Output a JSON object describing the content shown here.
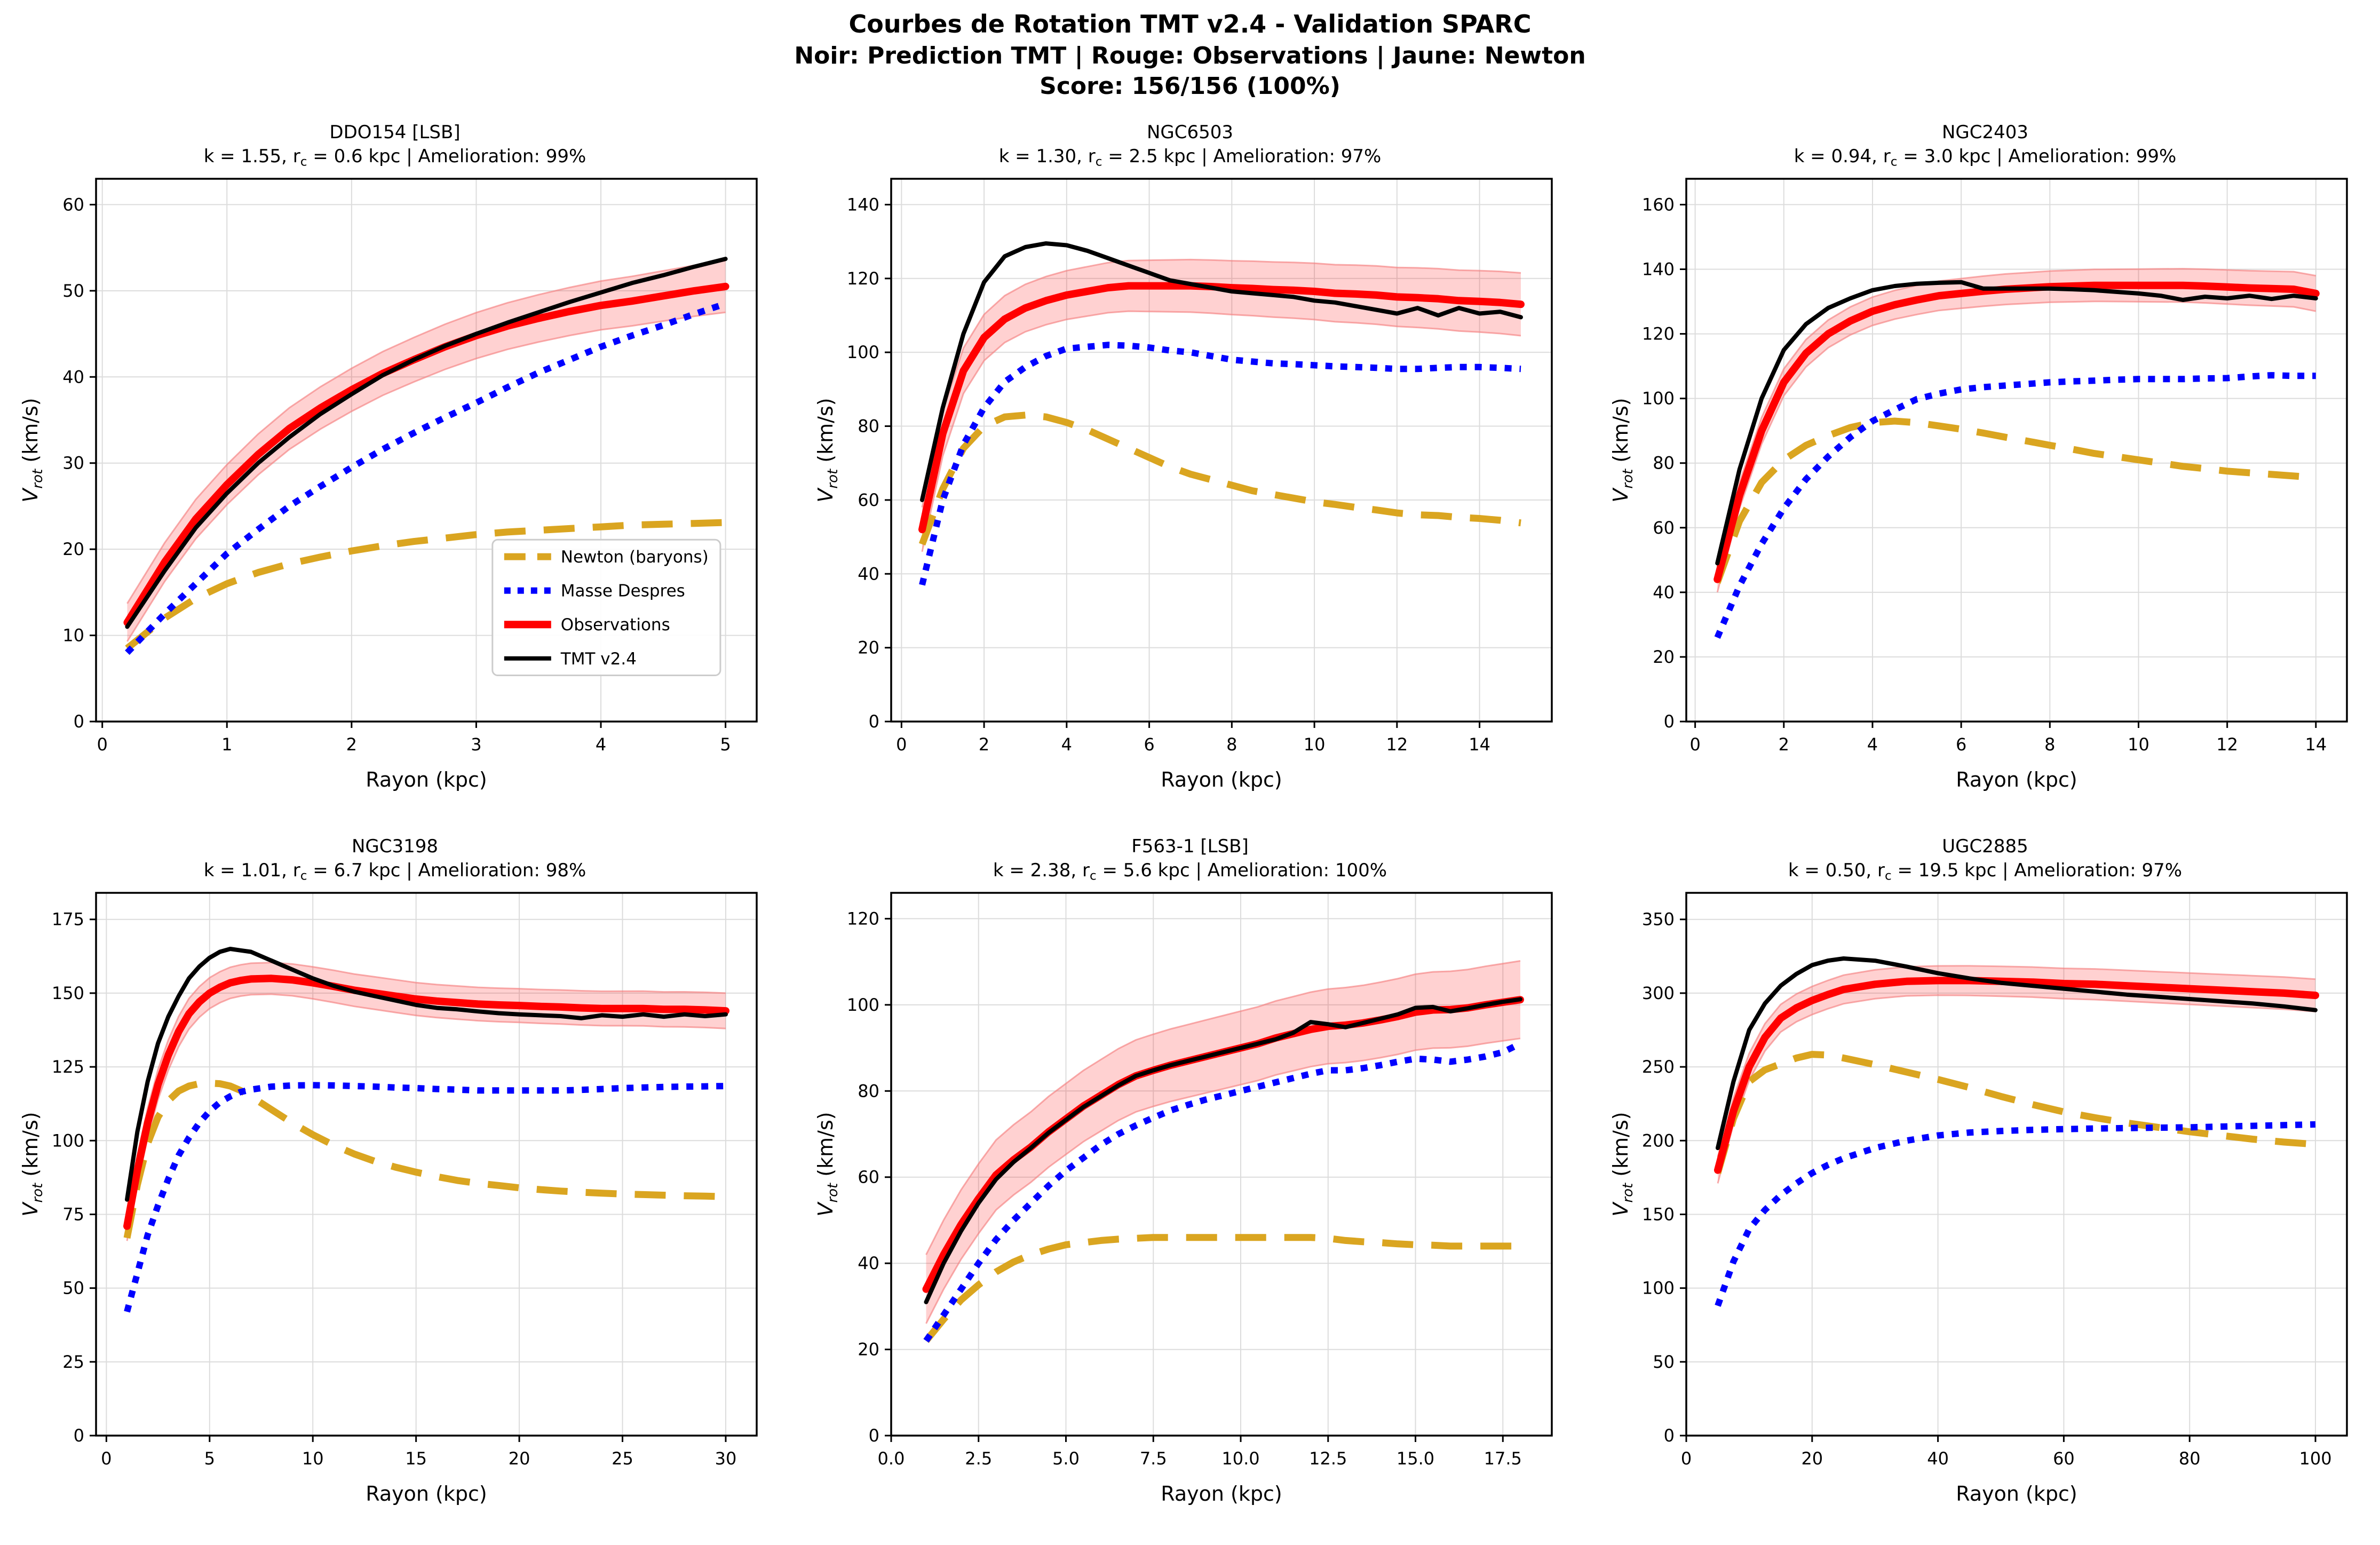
{
  "header": {
    "line1": "Courbes de Rotation TMT v2.4 - Validation SPARC",
    "line2": "Noir: Prediction TMT | Rouge: Observations | Jaune: Newton",
    "line3": "Score: 156/156 (100%)"
  },
  "axis": {
    "xlabel": "Rayon (kpc)",
    "ylabel_prefix": "V",
    "ylabel_sub": "rot",
    "ylabel_suffix": " (km/s)"
  },
  "colors": {
    "newton": "#DAA520",
    "despres": "#0000FF",
    "obs": "#FF0000",
    "tmt": "#000000",
    "band_fill": "#FF0000",
    "band_edge": "#F57F7F",
    "grid": "#DCDCDC",
    "spine": "#000000"
  },
  "legend": {
    "entries": [
      {
        "key": "newton",
        "label": "Newton (baryons)"
      },
      {
        "key": "despres",
        "label": "Masse Despres"
      },
      {
        "key": "obs",
        "label": "Observations"
      },
      {
        "key": "tmt",
        "label": "TMT v2.4"
      }
    ]
  },
  "chart_data": [
    {
      "type": "line",
      "name": "DDO154 [LSB]",
      "params_pre": "k = 1.55, r",
      "params_sub": "c",
      "params_post": " = 0.6 kpc | Amelioration: 99%",
      "xlabel": "Rayon (kpc)",
      "ylabel": "V_rot (km/s)",
      "legend": true,
      "xlim": [
        -0.05,
        5.25
      ],
      "ylim": [
        0,
        63
      ],
      "xticks": [
        0,
        1,
        2,
        3,
        4,
        5
      ],
      "xlabels": [
        "0",
        "1",
        "2",
        "3",
        "4",
        "5"
      ],
      "yticks": [
        0,
        10,
        20,
        30,
        40,
        50,
        60
      ],
      "ylabels": [
        "0",
        "10",
        "20",
        "30",
        "40",
        "50",
        "60"
      ],
      "x": [
        0.2,
        0.5,
        0.75,
        1,
        1.25,
        1.5,
        1.75,
        2,
        2.25,
        2.5,
        2.75,
        3,
        3.25,
        3.5,
        3.75,
        4,
        4.25,
        4.5,
        4.75,
        5
      ],
      "newton": [
        8.5,
        12,
        14.3,
        16,
        17.3,
        18.3,
        19.1,
        19.8,
        20.4,
        20.9,
        21.3,
        21.7,
        22,
        22.2,
        22.4,
        22.6,
        22.8,
        22.9,
        23,
        23.1
      ],
      "despres": [
        8,
        12.5,
        16,
        19.5,
        22.3,
        25,
        27.3,
        29.5,
        31.6,
        33.5,
        35.3,
        37,
        38.8,
        40.5,
        42,
        43.5,
        44.8,
        46,
        47.3,
        48.5
      ],
      "obs": [
        11.5,
        18.5,
        23.5,
        27.5,
        31,
        34,
        36.4,
        38.5,
        40.4,
        42,
        43.5,
        44.8,
        45.9,
        46.8,
        47.6,
        48.3,
        48.8,
        49.4,
        50,
        50.5
      ],
      "tmt": [
        11,
        17.5,
        22.5,
        26.5,
        30,
        33,
        35.7,
        38,
        40.2,
        42,
        43.6,
        45,
        46.3,
        47.5,
        48.7,
        49.8,
        50.9,
        51.8,
        52.8,
        53.7
      ],
      "band": [
        2.2,
        3.0
      ]
    },
    {
      "type": "line",
      "name": "NGC6503",
      "params_pre": "k = 1.30, r",
      "params_sub": "c",
      "params_post": " = 2.5 kpc | Amelioration: 97%",
      "xlabel": "Rayon (kpc)",
      "ylabel": "V_rot (km/s)",
      "legend": false,
      "xlim": [
        -0.25,
        15.75
      ],
      "ylim": [
        0,
        147
      ],
      "xticks": [
        0,
        2,
        4,
        6,
        8,
        10,
        12,
        14
      ],
      "xlabels": [
        "0",
        "2",
        "4",
        "6",
        "8",
        "10",
        "12",
        "14"
      ],
      "yticks": [
        0,
        20,
        40,
        60,
        80,
        100,
        120,
        140
      ],
      "ylabels": [
        "0",
        "20",
        "40",
        "60",
        "80",
        "100",
        "120",
        "140"
      ],
      "x": [
        0.5,
        1,
        1.5,
        2,
        2.5,
        3,
        3.5,
        4,
        4.5,
        5,
        5.5,
        6,
        6.5,
        7,
        7.5,
        8,
        8.5,
        9,
        9.5,
        10,
        10.5,
        11,
        11.5,
        12,
        12.5,
        13,
        13.5,
        14,
        14.5,
        15
      ],
      "newton": [
        48,
        63,
        74,
        80,
        82.5,
        83,
        82.5,
        81,
        79,
        76.5,
        74,
        71.5,
        69,
        67,
        65.5,
        64,
        62.5,
        61.5,
        60.5,
        59.5,
        58.8,
        58,
        57.3,
        56.5,
        56,
        55.8,
        55.3,
        55,
        54.5,
        53.8
      ],
      "despres": [
        37,
        60,
        75,
        85,
        92,
        96,
        99,
        101,
        101.5,
        102,
        101.8,
        101.3,
        100.5,
        100,
        99,
        98,
        97.5,
        97,
        96.8,
        96.5,
        96.2,
        96,
        95.8,
        95.5,
        95.5,
        95.8,
        96,
        96,
        95.8,
        95.5
      ],
      "obs": [
        52,
        78,
        95,
        104,
        109,
        112,
        114,
        115.5,
        116.5,
        117.5,
        118,
        118,
        118,
        118,
        117.8,
        117.5,
        117.3,
        117,
        116.8,
        116.5,
        116,
        115.8,
        115.5,
        115,
        114.8,
        114.5,
        114,
        113.8,
        113.5,
        113
      ],
      "tmt": [
        60,
        85,
        105,
        119,
        126,
        128.5,
        129.5,
        129,
        127.5,
        125.5,
        123.5,
        121.5,
        119.5,
        118.5,
        117.5,
        116.5,
        116,
        115.5,
        115,
        114,
        113.5,
        112.5,
        111.5,
        110.5,
        112,
        110,
        112,
        110.5,
        111,
        109.5
      ],
      "band": [
        6,
        8.5
      ]
    },
    {
      "type": "line",
      "name": "NGC2403",
      "params_pre": "k = 0.94, r",
      "params_sub": "c",
      "params_post": " = 3.0 kpc | Amelioration: 99%",
      "xlabel": "Rayon (kpc)",
      "ylabel": "V_rot (km/s)",
      "legend": false,
      "xlim": [
        -0.2,
        14.7
      ],
      "ylim": [
        0,
        168
      ],
      "xticks": [
        0,
        2,
        4,
        6,
        8,
        10,
        12,
        14
      ],
      "xlabels": [
        "0",
        "2",
        "4",
        "6",
        "8",
        "10",
        "12",
        "14"
      ],
      "yticks": [
        0,
        20,
        40,
        60,
        80,
        100,
        120,
        140,
        160
      ],
      "ylabels": [
        "0",
        "20",
        "40",
        "60",
        "80",
        "100",
        "120",
        "140",
        "160"
      ],
      "x": [
        0.5,
        1,
        1.5,
        2,
        2.5,
        3,
        3.5,
        4,
        4.5,
        5,
        5.5,
        6,
        6.5,
        7,
        7.5,
        8,
        8.5,
        9,
        9.5,
        10,
        10.5,
        11,
        11.5,
        12,
        12.5,
        13,
        13.5,
        14
      ],
      "newton": [
        43,
        62,
        74,
        81,
        85.5,
        88.5,
        91,
        92.5,
        93,
        92.5,
        91.5,
        90.5,
        89.3,
        88,
        86.8,
        85.5,
        84.3,
        83,
        82,
        81,
        80,
        79,
        78.3,
        77.5,
        77,
        76.5,
        76,
        75.5
      ],
      "despres": [
        26,
        42,
        55,
        66,
        75,
        82,
        88,
        93,
        96.5,
        99.8,
        101.5,
        102.8,
        103.5,
        104,
        104.5,
        105,
        105.3,
        105.5,
        105.8,
        106,
        106,
        106,
        106.2,
        106.3,
        106.8,
        107.2,
        107,
        107
      ],
      "obs": [
        44,
        70,
        90,
        105,
        114,
        120,
        124,
        127,
        129,
        130.5,
        131.8,
        132.5,
        133.2,
        133.8,
        134.2,
        134.6,
        134.8,
        135,
        135,
        135,
        135,
        135,
        134.8,
        134.5,
        134.2,
        134,
        133.8,
        132.5
      ],
      "tmt": [
        49,
        78,
        100,
        115,
        123,
        128,
        131,
        133.5,
        134.8,
        135.5,
        135.8,
        136,
        134,
        134,
        134,
        134,
        133.8,
        133.5,
        133,
        132.5,
        131.8,
        130.5,
        131.5,
        131,
        131.8,
        130.8,
        131.8,
        131
      ],
      "band": [
        4,
        5.5
      ]
    },
    {
      "type": "line",
      "name": "NGC3198",
      "params_pre": "k = 1.01, r",
      "params_sub": "c",
      "params_post": " = 6.7 kpc | Amelioration: 98%",
      "xlabel": "Rayon (kpc)",
      "ylabel": "V_rot (km/s)",
      "legend": false,
      "xlim": [
        -0.5,
        31.5
      ],
      "ylim": [
        0,
        184
      ],
      "xticks": [
        0,
        5,
        10,
        15,
        20,
        25,
        30
      ],
      "xlabels": [
        "0",
        "5",
        "10",
        "15",
        "20",
        "25",
        "30"
      ],
      "yticks": [
        0,
        25,
        50,
        75,
        100,
        125,
        150,
        175
      ],
      "ylabels": [
        "0",
        "25",
        "50",
        "75",
        "100",
        "125",
        "150",
        "175"
      ],
      "x": [
        1,
        1.5,
        2,
        2.5,
        3,
        3.5,
        4,
        4.5,
        5,
        5.5,
        6,
        6.5,
        7,
        8,
        9,
        10,
        11,
        12,
        13,
        14,
        15,
        16,
        17,
        18,
        19,
        20,
        21,
        22,
        23,
        24,
        25,
        26,
        27,
        28,
        29,
        30
      ],
      "newton": [
        67,
        85,
        99,
        108,
        113.5,
        116.8,
        118.5,
        119.3,
        119.5,
        119.3,
        118.5,
        117,
        115,
        110.5,
        106,
        102,
        98.5,
        95.5,
        93,
        91,
        89.3,
        87.8,
        86.5,
        85.5,
        84.8,
        84,
        83.4,
        82.9,
        82.5,
        82.2,
        81.9,
        81.7,
        81.5,
        81.3,
        81.2,
        81
      ],
      "despres": [
        42,
        55,
        68,
        78,
        87,
        95,
        101,
        106,
        110,
        113,
        115,
        116.5,
        117.3,
        118.3,
        118.7,
        118.8,
        118.7,
        118.5,
        118.3,
        118,
        117.8,
        117.5,
        117.3,
        117,
        117,
        117,
        117,
        117,
        117.2,
        117.5,
        117.8,
        118,
        118.2,
        118.3,
        118.4,
        118.5
      ],
      "obs": [
        71,
        90,
        106,
        119,
        129,
        137,
        143,
        147,
        150,
        152,
        153.5,
        154.3,
        154.8,
        155,
        154.5,
        153.5,
        152.3,
        151,
        150,
        149,
        148,
        147.3,
        146.8,
        146.3,
        146,
        145.8,
        145.5,
        145.3,
        145,
        144.8,
        144.8,
        144.8,
        144.5,
        144.5,
        144.3,
        144
      ],
      "tmt": [
        80,
        103,
        120,
        133,
        142,
        149,
        155,
        159,
        162,
        164,
        165,
        164.5,
        164,
        161,
        158,
        155,
        152.5,
        150.5,
        149,
        147.5,
        146,
        145,
        144.5,
        143.8,
        143.2,
        142.8,
        142.5,
        142.2,
        141.5,
        142.5,
        142,
        142.8,
        142,
        142.8,
        142.2,
        142.8
      ],
      "band": [
        5,
        6
      ]
    },
    {
      "type": "line",
      "name": "F563-1 [LSB]",
      "params_pre": "k = 2.38, r",
      "params_sub": "c",
      "params_post": " = 5.6 kpc | Amelioration: 100%",
      "xlabel": "Rayon (kpc)",
      "ylabel": "V_rot (km/s)",
      "legend": false,
      "xlim": [
        0,
        18.9
      ],
      "ylim": [
        0,
        126
      ],
      "xticks": [
        0,
        2.5,
        5,
        7.5,
        10,
        12.5,
        15,
        17.5
      ],
      "xlabels": [
        "0.0",
        "2.5",
        "5.0",
        "7.5",
        "10.0",
        "12.5",
        "15.0",
        "17.5"
      ],
      "yticks": [
        0,
        20,
        40,
        60,
        80,
        100,
        120
      ],
      "ylabels": [
        "0",
        "20",
        "40",
        "60",
        "80",
        "100",
        "120"
      ],
      "x": [
        1,
        1.5,
        2,
        2.5,
        3,
        3.5,
        4,
        4.5,
        5,
        5.5,
        6,
        6.5,
        7,
        7.5,
        8,
        8.5,
        9,
        9.5,
        10,
        10.5,
        11,
        11.5,
        12,
        12.5,
        13,
        13.5,
        14,
        14.5,
        15,
        15.5,
        16,
        16.5,
        17,
        17.5,
        18
      ],
      "newton": [
        22,
        27,
        31.5,
        35,
        38,
        40.3,
        42,
        43.3,
        44.3,
        44.8,
        45.3,
        45.6,
        45.8,
        46,
        46,
        46,
        46,
        46,
        46,
        46,
        46,
        46,
        46,
        45.8,
        45.3,
        45,
        44.8,
        44.5,
        44.3,
        44.2,
        44,
        44,
        44,
        44,
        44
      ],
      "despres": [
        22,
        28,
        34,
        40,
        45.5,
        50,
        54,
        58,
        61.5,
        64.5,
        67.5,
        70,
        72,
        73.8,
        75.5,
        76.8,
        78,
        79,
        80,
        81,
        82,
        83,
        84,
        84.8,
        84.8,
        85.3,
        86,
        86.8,
        87.5,
        87.3,
        86.8,
        87.3,
        88,
        89,
        91
      ],
      "obs": [
        34,
        42,
        49,
        55,
        60.5,
        64,
        67,
        70.5,
        73.5,
        76.5,
        79,
        81.5,
        83.5,
        84.8,
        86,
        87,
        88,
        89,
        90,
        91,
        92.3,
        93.3,
        94.3,
        95,
        95.3,
        95.8,
        96.5,
        97.3,
        98.3,
        98.8,
        98.9,
        99.3,
        100,
        100.6,
        101.2
      ],
      "tmt": [
        31,
        40,
        47.5,
        54,
        59.5,
        63.5,
        66.8,
        70.3,
        73.3,
        76.3,
        78.8,
        81.3,
        83.5,
        84.8,
        86,
        87,
        88,
        89,
        90,
        91,
        92,
        93.5,
        96,
        95.5,
        94.8,
        95.8,
        96.8,
        97.8,
        99.3,
        99.5,
        98.5,
        99.2,
        100,
        100.7,
        101.3
      ],
      "band": [
        8,
        9
      ]
    },
    {
      "type": "line",
      "name": "UGC2885",
      "params_pre": "k = 0.50, r",
      "params_sub": "c",
      "params_post": " = 19.5 kpc | Amelioration: 97%",
      "xlabel": "Rayon (kpc)",
      "ylabel": "V_rot (km/s)",
      "legend": false,
      "xlim": [
        0,
        105
      ],
      "ylim": [
        0,
        368
      ],
      "xticks": [
        0,
        20,
        40,
        60,
        80,
        100
      ],
      "xlabels": [
        "0",
        "20",
        "40",
        "60",
        "80",
        "100"
      ],
      "yticks": [
        0,
        50,
        100,
        150,
        200,
        250,
        300,
        350
      ],
      "ylabels": [
        "0",
        "50",
        "100",
        "150",
        "200",
        "250",
        "300",
        "350"
      ],
      "x": [
        5,
        7.5,
        10,
        12.5,
        15,
        17.5,
        20,
        22.5,
        25,
        30,
        35,
        40,
        45,
        50,
        55,
        60,
        65,
        70,
        75,
        80,
        85,
        90,
        95,
        100
      ],
      "newton": [
        178,
        215,
        240,
        248,
        252,
        256,
        258.5,
        258,
        256,
        251.5,
        246.5,
        241.5,
        236,
        230,
        224.5,
        219.5,
        215.5,
        212,
        209,
        206,
        203.5,
        201,
        199,
        197.5
      ],
      "despres": [
        88,
        118,
        140,
        153,
        163,
        171,
        178,
        183.5,
        188,
        195,
        200,
        203.5,
        205.5,
        206.5,
        207.3,
        207.8,
        208.2,
        208.5,
        208.8,
        209,
        209.5,
        210,
        210.5,
        211
      ],
      "obs": [
        180,
        220,
        250,
        270,
        283,
        290,
        295,
        299,
        302.5,
        306,
        308,
        308.5,
        308.5,
        308,
        307.5,
        306.5,
        306,
        305,
        304,
        303,
        302,
        301,
        300,
        298.5
      ],
      "tmt": [
        195,
        240,
        275,
        293,
        305,
        313,
        319,
        322,
        323.5,
        322,
        318,
        313.5,
        310,
        307,
        305,
        303,
        301,
        299,
        297.5,
        296,
        294.5,
        293,
        291,
        288.5
      ],
      "band": [
        9,
        11
      ]
    }
  ]
}
